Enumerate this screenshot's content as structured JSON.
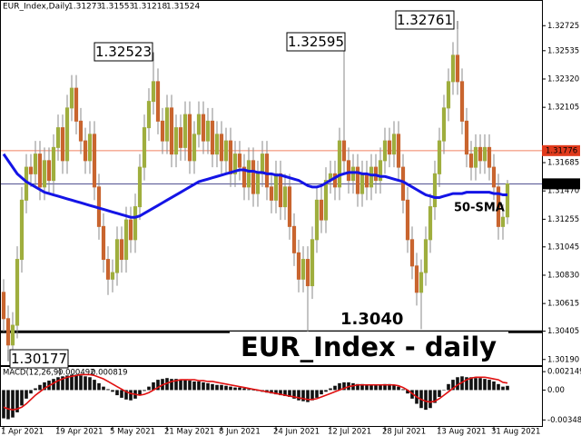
{
  "chart_data": {
    "type": "candlestick",
    "symbol_label": "EUR_Index,Daily",
    "title": "EUR_Index - daily",
    "categories": [
      "1 Apr 2021",
      null,
      null,
      null,
      null,
      null,
      null,
      null,
      null,
      null,
      null,
      null,
      "19 Apr 2021",
      null,
      null,
      null,
      null,
      null,
      null,
      null,
      null,
      null,
      null,
      null,
      "5 May 2021",
      null,
      null,
      null,
      null,
      null,
      null,
      null,
      null,
      null,
      null,
      null,
      "21 May 2021",
      null,
      null,
      null,
      null,
      null,
      null,
      null,
      null,
      null,
      null,
      null,
      "8 Jun 2021",
      null,
      null,
      null,
      null,
      null,
      null,
      null,
      null,
      null,
      null,
      null,
      "24 Jun 2021",
      null,
      null,
      null,
      null,
      null,
      null,
      null,
      null,
      null,
      null,
      null,
      "12 Jul 2021",
      null,
      null,
      null,
      null,
      null,
      null,
      null,
      null,
      null,
      null,
      null,
      "28 Jul 2021",
      null,
      null,
      null,
      null,
      null,
      null,
      null,
      null,
      null,
      null,
      null,
      "13 Aug 2021",
      null,
      null,
      null,
      null,
      null,
      null,
      null,
      null,
      null,
      null,
      null,
      "31 Aug 2021",
      null,
      null,
      null
    ],
    "open": [
      1.307,
      1.305,
      1.303,
      1.3045,
      1.3095,
      1.314,
      1.3165,
      1.316,
      1.3175,
      1.315,
      1.317,
      1.3155,
      1.318,
      1.3195,
      1.317,
      1.321,
      1.3225,
      1.32,
      1.3185,
      1.317,
      1.319,
      1.315,
      1.312,
      1.3095,
      1.308,
      1.3085,
      1.311,
      1.3095,
      1.3125,
      1.311,
      1.3135,
      1.3165,
      1.3195,
      1.3215,
      1.323,
      1.32,
      1.3185,
      1.321,
      1.3175,
      1.3195,
      1.318,
      1.3205,
      1.317,
      1.319,
      1.3205,
      1.3185,
      1.32,
      1.3175,
      1.319,
      1.317,
      1.3185,
      1.316,
      1.3175,
      1.3165,
      1.315,
      1.317,
      1.3145,
      1.316,
      1.3175,
      1.315,
      1.314,
      1.316,
      1.3135,
      1.315,
      1.312,
      1.31,
      1.308,
      1.3095,
      1.3075,
      1.311,
      1.314,
      1.3125,
      1.3155,
      1.316,
      1.315,
      1.3185,
      1.317,
      1.3155,
      1.3165,
      1.3145,
      1.316,
      1.315,
      1.3165,
      1.3155,
      1.317,
      1.3185,
      1.3175,
      1.319,
      1.3165,
      1.314,
      1.311,
      1.309,
      1.307,
      1.3085,
      1.311,
      1.3135,
      1.316,
      1.3185,
      1.321,
      1.323,
      1.325,
      1.323,
      1.32,
      1.3175,
      1.3165,
      1.318,
      1.317,
      1.318,
      1.3165,
      1.315,
      1.312,
      1.31273
    ],
    "high": [
      1.308,
      1.306,
      1.3055,
      1.3105,
      1.315,
      1.3175,
      1.3175,
      1.3185,
      1.3185,
      1.318,
      1.318,
      1.319,
      1.3205,
      1.3205,
      1.322,
      1.3235,
      1.3235,
      1.321,
      1.3195,
      1.32,
      1.32,
      1.316,
      1.313,
      1.3105,
      1.3095,
      1.312,
      1.312,
      1.3135,
      1.3135,
      1.3145,
      1.3175,
      1.3205,
      1.3225,
      1.32523,
      1.324,
      1.321,
      1.322,
      1.322,
      1.3205,
      1.3205,
      1.3215,
      1.3215,
      1.32,
      1.3215,
      1.3215,
      1.321,
      1.321,
      1.32,
      1.32,
      1.3195,
      1.3195,
      1.3185,
      1.3185,
      1.3175,
      1.318,
      1.318,
      1.317,
      1.3185,
      1.3185,
      1.316,
      1.317,
      1.317,
      1.316,
      1.316,
      1.313,
      1.311,
      1.3105,
      1.3105,
      1.312,
      1.315,
      1.315,
      1.3165,
      1.317,
      1.317,
      1.3195,
      1.32595,
      1.318,
      1.3175,
      1.3175,
      1.317,
      1.317,
      1.3175,
      1.3175,
      1.318,
      1.3195,
      1.3195,
      1.32,
      1.32,
      1.3175,
      1.315,
      1.312,
      1.31,
      1.3095,
      1.312,
      1.3145,
      1.317,
      1.3195,
      1.322,
      1.324,
      1.326,
      1.32761,
      1.324,
      1.321,
      1.3185,
      1.319,
      1.319,
      1.319,
      1.319,
      1.3175,
      1.316,
      1.3137,
      1.31553
    ],
    "low": [
      1.304,
      1.30177,
      1.302,
      1.3035,
      1.3085,
      1.313,
      1.315,
      1.315,
      1.314,
      1.314,
      1.3145,
      1.3145,
      1.317,
      1.316,
      1.316,
      1.32,
      1.319,
      1.3175,
      1.316,
      1.316,
      1.314,
      1.311,
      1.3085,
      1.3068,
      1.307,
      1.3075,
      1.3085,
      1.3085,
      1.31,
      1.31,
      1.3125,
      1.3155,
      1.3185,
      1.3205,
      1.319,
      1.3175,
      1.3175,
      1.3165,
      1.3165,
      1.317,
      1.317,
      1.316,
      1.316,
      1.318,
      1.3175,
      1.3175,
      1.3165,
      1.3165,
      1.316,
      1.316,
      1.315,
      1.315,
      1.3155,
      1.314,
      1.314,
      1.3135,
      1.3135,
      1.315,
      1.314,
      1.313,
      1.313,
      1.3125,
      1.3125,
      1.311,
      1.309,
      1.307,
      1.307,
      1.304,
      1.3065,
      1.31,
      1.3115,
      1.3115,
      1.3145,
      1.314,
      1.314,
      1.316,
      1.3145,
      1.3145,
      1.3135,
      1.3135,
      1.314,
      1.314,
      1.3145,
      1.3145,
      1.316,
      1.3165,
      1.3165,
      1.3155,
      1.313,
      1.31,
      1.308,
      1.306,
      1.3042,
      1.3075,
      1.31,
      1.3125,
      1.315,
      1.3175,
      1.32,
      1.322,
      1.322,
      1.319,
      1.3165,
      1.3155,
      1.3155,
      1.316,
      1.316,
      1.3155,
      1.314,
      1.311,
      1.311,
      1.31218
    ],
    "close": [
      1.305,
      1.303,
      1.3045,
      1.3095,
      1.314,
      1.3165,
      1.316,
      1.3175,
      1.315,
      1.317,
      1.3155,
      1.318,
      1.3195,
      1.317,
      1.321,
      1.3225,
      1.32,
      1.3185,
      1.317,
      1.319,
      1.315,
      1.312,
      1.3095,
      1.308,
      1.3085,
      1.311,
      1.3095,
      1.3125,
      1.311,
      1.3135,
      1.3165,
      1.3195,
      1.3215,
      1.323,
      1.32,
      1.3185,
      1.321,
      1.3175,
      1.3195,
      1.318,
      1.3205,
      1.317,
      1.319,
      1.3205,
      1.3185,
      1.32,
      1.3175,
      1.319,
      1.317,
      1.3185,
      1.316,
      1.3175,
      1.3165,
      1.315,
      1.317,
      1.3145,
      1.316,
      1.3175,
      1.315,
      1.314,
      1.316,
      1.3135,
      1.315,
      1.312,
      1.31,
      1.308,
      1.3095,
      1.3075,
      1.311,
      1.314,
      1.3125,
      1.3155,
      1.316,
      1.315,
      1.3185,
      1.317,
      1.3155,
      1.3165,
      1.3145,
      1.316,
      1.315,
      1.3165,
      1.3155,
      1.317,
      1.3185,
      1.3175,
      1.319,
      1.3165,
      1.314,
      1.311,
      1.309,
      1.307,
      1.3085,
      1.311,
      1.3135,
      1.316,
      1.3185,
      1.321,
      1.323,
      1.325,
      1.323,
      1.32,
      1.3175,
      1.3165,
      1.318,
      1.317,
      1.318,
      1.3165,
      1.315,
      1.312,
      1.3127,
      1.31524
    ],
    "colors": {
      "up": "#9fae3e",
      "down": "#c9652f",
      "wick": "#8a8a8a"
    },
    "ylim": [
      1.3014,
      1.3292
    ],
    "yticks": [
      1.32725,
      1.32535,
      {
        "value": 1.3232,
        "label": "1.32320"
      },
      1.32105,
      1.31685,
      {
        "value": 1.3147,
        "label": "1.31470"
      },
      1.31255,
      1.31045,
      {
        "value": 1.3083,
        "label": "1.30830"
      },
      1.30615,
      1.30405,
      {
        "value": 1.3019,
        "label": "1.30190"
      }
    ],
    "sma": {
      "name": "50-SMA",
      "color": "#1414e6",
      "values": [
        1.3175,
        1.317,
        1.3165,
        1.316,
        1.3157,
        1.3154,
        1.3152,
        1.315,
        1.3148,
        1.3146,
        1.3145,
        1.3144,
        1.3143,
        1.3142,
        1.3141,
        1.314,
        1.3139,
        1.3138,
        1.3137,
        1.3136,
        1.3135,
        1.3134,
        1.3133,
        1.3132,
        1.3131,
        1.313,
        1.3129,
        1.3128,
        1.3127,
        1.3127,
        1.3128,
        1.313,
        1.3132,
        1.3134,
        1.3136,
        1.3138,
        1.314,
        1.3142,
        1.3144,
        1.3146,
        1.3148,
        1.315,
        1.3152,
        1.3154,
        1.3155,
        1.3156,
        1.3157,
        1.3158,
        1.3159,
        1.316,
        1.3161,
        1.3162,
        1.3163,
        1.3163,
        1.3162,
        1.3162,
        1.3161,
        1.3161,
        1.316,
        1.316,
        1.3159,
        1.3159,
        1.3158,
        1.3157,
        1.3156,
        1.3155,
        1.3153,
        1.3151,
        1.315,
        1.315,
        1.3151,
        1.3153,
        1.3155,
        1.3157,
        1.3159,
        1.316,
        1.3161,
        1.3161,
        1.3161,
        1.316,
        1.316,
        1.3159,
        1.3159,
        1.3158,
        1.3158,
        1.3157,
        1.3156,
        1.3155,
        1.3154,
        1.3152,
        1.315,
        1.3148,
        1.3146,
        1.3144,
        1.3143,
        1.3142,
        1.3142,
        1.3143,
        1.3144,
        1.3145,
        1.3145,
        1.3145,
        1.3146,
        1.3146,
        1.3146,
        1.3146,
        1.3146,
        1.3146,
        1.3145,
        1.3145,
        1.3144,
        1.3144
      ]
    },
    "levels": [
      {
        "value": 1.304,
        "label": "1.3040",
        "color": "#000000"
      },
      {
        "value": 1.31776,
        "color": "#f08060",
        "label_bg": "#e03a1c"
      }
    ],
    "macd": {
      "name": "MACD(12,26,9)",
      "histogram": {
        "color": "#111111",
        "values": [
          -0.0033,
          -0.0034,
          -0.0032,
          -0.0026,
          -0.0018,
          -0.001,
          -0.0004,
          0.0002,
          0.0006,
          0.0009,
          0.0011,
          0.0013,
          0.0015,
          0.0016,
          0.0017,
          0.0018,
          0.0018,
          0.0017,
          0.0016,
          0.0015,
          0.0012,
          0.0008,
          0.0004,
          0.0001,
          -0.0002,
          -0.0006,
          -0.0009,
          -0.0011,
          -0.0012,
          -0.001,
          -0.0006,
          -0.0001,
          0.0004,
          0.0009,
          0.0012,
          0.0013,
          0.0014,
          0.0013,
          0.0013,
          0.0012,
          0.0012,
          0.0011,
          0.001,
          0.001,
          0.0009,
          0.0008,
          0.0007,
          0.0006,
          0.0006,
          0.0005,
          0.0004,
          0.0003,
          0.0003,
          0.0002,
          0.0001,
          0.0,
          -0.0001,
          -0.0002,
          -0.0003,
          -0.0004,
          -0.0005,
          -0.0006,
          -0.0007,
          -0.0008,
          -0.001,
          -0.0012,
          -0.0013,
          -0.0014,
          -0.0012,
          -0.0009,
          -0.0005,
          -0.0002,
          0.0002,
          0.0005,
          0.0008,
          0.0009,
          0.0009,
          0.0008,
          0.0007,
          0.0007,
          0.0006,
          0.0006,
          0.0006,
          0.0006,
          0.0007,
          0.0007,
          0.0006,
          0.0004,
          0.0001,
          -0.0004,
          -0.001,
          -0.0016,
          -0.0021,
          -0.0023,
          -0.0021,
          -0.0015,
          -0.0008,
          0.0,
          0.0007,
          0.0012,
          0.0015,
          0.0016,
          0.0015,
          0.0015,
          0.0014,
          0.0014,
          0.0013,
          0.0012,
          0.001,
          0.0007,
          0.0004,
          0.000492
        ]
      },
      "signal": {
        "color": "#e01010",
        "values": [
          -0.002,
          -0.0022,
          -0.0023,
          -0.0022,
          -0.002,
          -0.0016,
          -0.0011,
          -0.0006,
          -0.0002,
          0.0002,
          0.0005,
          0.0008,
          0.0011,
          0.0013,
          0.0015,
          0.0016,
          0.0017,
          0.0018,
          0.0018,
          0.0018,
          0.0017,
          0.0015,
          0.0013,
          0.001,
          0.0007,
          0.0004,
          0.0001,
          -0.0002,
          -0.0004,
          -0.0005,
          -0.0006,
          -0.0005,
          -0.0003,
          0.0,
          0.0003,
          0.0006,
          0.0008,
          0.001,
          0.0011,
          0.0012,
          0.0012,
          0.0012,
          0.0012,
          0.0011,
          0.0011,
          0.001,
          0.001,
          0.0009,
          0.0008,
          0.0007,
          0.0006,
          0.0005,
          0.0004,
          0.0003,
          0.0002,
          0.0001,
          0.0,
          -0.0001,
          -0.0002,
          -0.0003,
          -0.0004,
          -0.0005,
          -0.0006,
          -0.0007,
          -0.0008,
          -0.0009,
          -0.001,
          -0.0011,
          -0.0011,
          -0.001,
          -0.0008,
          -0.0006,
          -0.0004,
          -0.0002,
          0.0,
          0.0002,
          0.0004,
          0.0005,
          0.0006,
          0.0006,
          0.0006,
          0.0006,
          0.0006,
          0.0006,
          0.0006,
          0.0006,
          0.0006,
          0.0005,
          0.0003,
          0.0,
          -0.0004,
          -0.0008,
          -0.0011,
          -0.0013,
          -0.0014,
          -0.0013,
          -0.001,
          -0.0006,
          -0.0002,
          0.0002,
          0.0006,
          0.0009,
          0.0012,
          0.0014,
          0.0015,
          0.0015,
          0.0015,
          0.0014,
          0.0013,
          0.0012,
          0.0009,
          0.000819
        ]
      },
      "ylim": [
        -0.0043,
        0.0028
      ],
      "yticks": [
        0.002149,
        {
          "value": 0,
          "label": "0.00"
        },
        -0.003487
      ]
    }
  }
}
